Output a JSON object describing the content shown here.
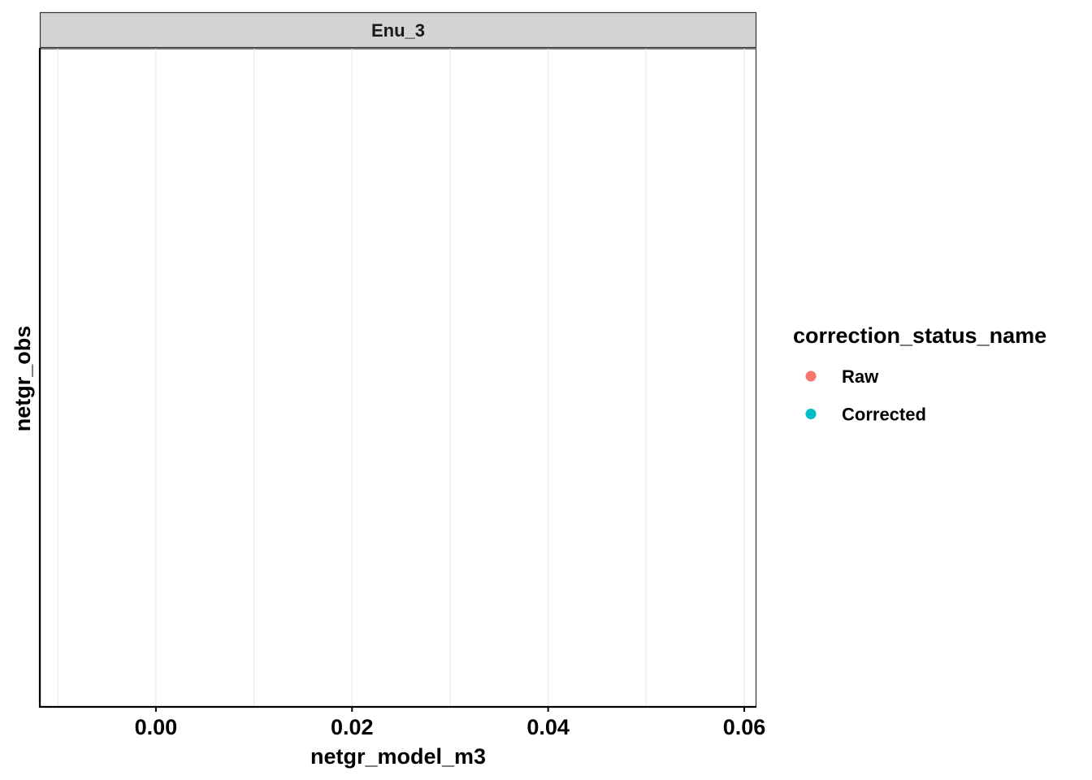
{
  "chart_data": {
    "type": "scatter",
    "facets": [
      {
        "label": "Enu_3",
        "points": []
      }
    ],
    "xlabel": "netgr_model_m3",
    "ylabel": "netgr_obs",
    "xlim": [
      -0.0118,
      0.0612
    ],
    "x_ticks": [
      0.0,
      0.02,
      0.04,
      0.06
    ],
    "x_tick_labels": [
      "0.00",
      "0.02",
      "0.04",
      "0.06"
    ],
    "x_minor_grid": [
      -0.01,
      0.01,
      0.03,
      0.05
    ],
    "y_ticks": [],
    "grid": "vertical",
    "legend": {
      "position": "right",
      "title": "correction_status_name",
      "items": [
        {
          "label": "Raw",
          "color": "#F8766D"
        },
        {
          "label": "Corrected",
          "color": "#00BFC4"
        }
      ]
    },
    "colors": {
      "strip_bg": "#D3D3D3",
      "panel_bg": "#FFFFFF",
      "gridline": "#EBEBEB",
      "axis_line": "#000000"
    }
  }
}
